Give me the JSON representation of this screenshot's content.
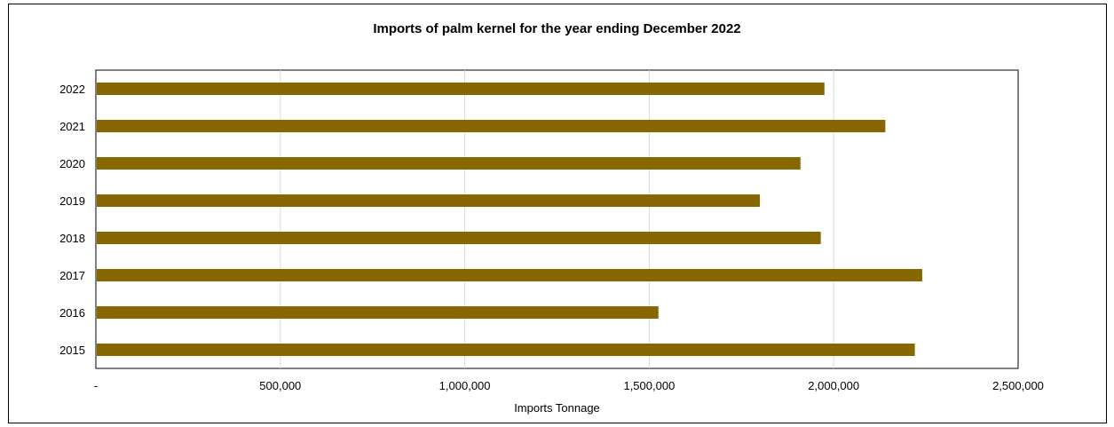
{
  "chart_data": {
    "type": "bar",
    "orientation": "horizontal",
    "title": "Imports of palm kernel for the year ending December 2022",
    "xlabel": "Imports Tonnage",
    "ylabel": "",
    "categories": [
      "2022",
      "2021",
      "2020",
      "2019",
      "2018",
      "2017",
      "2016",
      "2015"
    ],
    "values": [
      1975000,
      2140000,
      1910000,
      1800000,
      1965000,
      2240000,
      1525000,
      2220000
    ],
    "xlim": [
      0,
      2500000
    ],
    "x_ticks": [
      {
        "value": 0,
        "label": "-"
      },
      {
        "value": 500000,
        "label": "500,000"
      },
      {
        "value": 1000000,
        "label": "1,000,000"
      },
      {
        "value": 1500000,
        "label": "1,500,000"
      },
      {
        "value": 2000000,
        "label": "2,000,000"
      },
      {
        "value": 2500000,
        "label": "2,500,000"
      }
    ],
    "grid": true,
    "legend": "none",
    "bar_color": "#866700"
  }
}
